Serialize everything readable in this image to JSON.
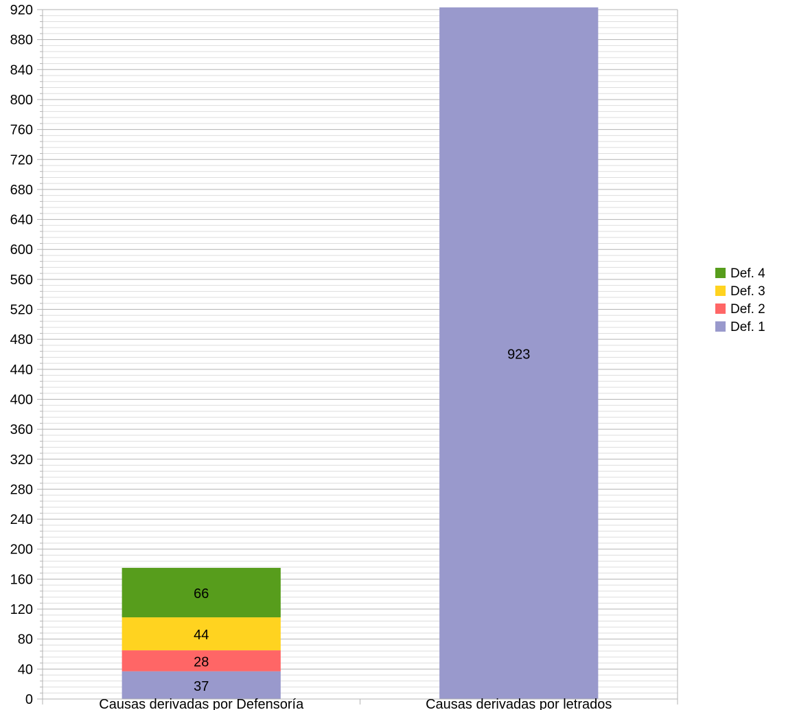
{
  "chart_data": {
    "type": "bar",
    "stacked": true,
    "categories": [
      "Causas derivadas por Defensoría",
      "Causas derivadas por letrados"
    ],
    "series": [
      {
        "name": "Def. 1",
        "color": "#9999cc",
        "values": [
          37,
          923
        ]
      },
      {
        "name": "Def. 2",
        "color": "#ff6666",
        "values": [
          28,
          null
        ]
      },
      {
        "name": "Def. 3",
        "color": "#ffd320",
        "values": [
          44,
          null
        ]
      },
      {
        "name": "Def. 4",
        "color": "#579d1c",
        "values": [
          66,
          null
        ]
      }
    ],
    "ylim": [
      0,
      920
    ],
    "ytick_step": 40,
    "yticks": [
      "0",
      "40",
      "80",
      "120",
      "160",
      "200",
      "240",
      "280",
      "320",
      "360",
      "400",
      "440",
      "480",
      "520",
      "560",
      "600",
      "640",
      "680",
      "720",
      "760",
      "800",
      "840",
      "880",
      "920"
    ],
    "grid": true,
    "legend_position": "right",
    "legend_order": [
      "Def. 4",
      "Def. 3",
      "Def. 2",
      "Def. 1"
    ],
    "title": "",
    "xlabel": "",
    "ylabel": ""
  }
}
